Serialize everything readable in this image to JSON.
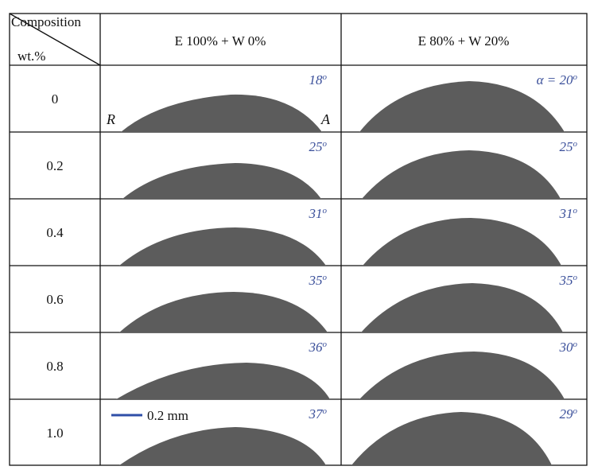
{
  "table": {
    "corner_top": "Composition",
    "corner_bottom": "wt.%",
    "columns": [
      "E 100% + W 0%",
      "E 80% + W 20%"
    ],
    "rows": [
      {
        "composition": "0",
        "angles": [
          "18",
          "20"
        ],
        "angle_prefix": [
          "",
          "α = "
        ]
      },
      {
        "composition": "0.2",
        "angles": [
          "25",
          "25"
        ],
        "angle_prefix": [
          "",
          ""
        ]
      },
      {
        "composition": "0.4",
        "angles": [
          "31",
          "31"
        ],
        "angle_prefix": [
          "",
          ""
        ]
      },
      {
        "composition": "0.6",
        "angles": [
          "35",
          "35"
        ],
        "angle_prefix": [
          "",
          ""
        ]
      },
      {
        "composition": "0.8",
        "angles": [
          "36",
          "30"
        ],
        "angle_prefix": [
          "",
          ""
        ]
      },
      {
        "composition": "1.0",
        "angles": [
          "37",
          "29"
        ],
        "angle_prefix": [
          "",
          ""
        ]
      }
    ],
    "degree_symbol": "o",
    "side_labels": {
      "left": "R",
      "right": "A"
    },
    "scale_bar": {
      "label": "0.2 mm",
      "color": "#2f4fa8"
    },
    "angle_color": "#3a4f9a",
    "droplet_color": "#5c5c5c"
  }
}
